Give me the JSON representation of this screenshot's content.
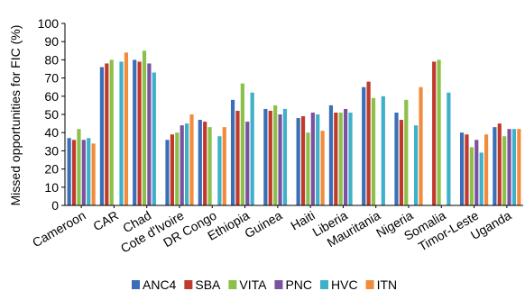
{
  "chart_data": {
    "type": "bar",
    "title": "",
    "xlabel": "",
    "ylabel": "Missed opportunities for FIC (%)",
    "ylim": [
      0,
      100
    ],
    "yticks": [
      0,
      10,
      20,
      30,
      40,
      50,
      60,
      70,
      80,
      90,
      100
    ],
    "grid": false,
    "legend_position": "bottom",
    "categories": [
      "Cameroon",
      "CAR",
      "Chad",
      "Cote d'Ivoire",
      "DR Congo",
      "Ethiopia",
      "Guinea",
      "Haiti",
      "Liberia",
      "Mauritania",
      "Nigeria",
      "Somalia",
      "Timor-Leste",
      "Uganda"
    ],
    "series": [
      {
        "name": "ANC4",
        "color": "#3a6fb7",
        "values": [
          37,
          76,
          80,
          36,
          47,
          58,
          53,
          48,
          55,
          65,
          51,
          null,
          40,
          43
        ]
      },
      {
        "name": "SBA",
        "color": "#c0392b",
        "values": [
          36,
          78,
          79,
          39,
          46,
          52,
          52,
          49,
          51,
          68,
          47,
          79,
          39,
          45
        ]
      },
      {
        "name": "VITA",
        "color": "#8dc04a",
        "values": [
          42,
          80,
          85,
          40,
          43,
          67,
          55,
          40,
          51,
          59,
          58,
          80,
          32,
          38
        ]
      },
      {
        "name": "PNC",
        "color": "#7a52a0",
        "values": [
          36,
          null,
          78,
          44,
          null,
          46,
          50,
          51,
          53,
          null,
          null,
          null,
          36,
          42
        ]
      },
      {
        "name": "HVC",
        "color": "#3fb0c9",
        "values": [
          37,
          79,
          73,
          45,
          38,
          62,
          53,
          50,
          51,
          60,
          44,
          62,
          29,
          42
        ]
      },
      {
        "name": "ITN",
        "color": "#f28c3c",
        "values": [
          34,
          84,
          null,
          50,
          43,
          null,
          null,
          41,
          null,
          null,
          65,
          null,
          39,
          42
        ]
      }
    ]
  }
}
